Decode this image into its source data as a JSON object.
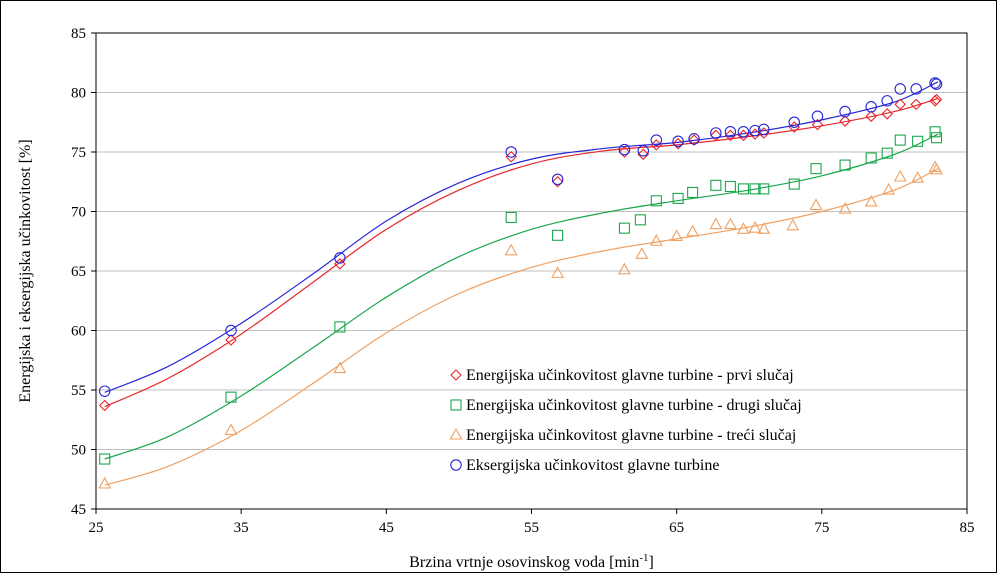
{
  "chart_data": {
    "type": "scatter",
    "xlabel": "Brzina vrtnje osovinskog voda [min",
    "xlabel_sup": "-1",
    "xlabel_end": "]",
    "ylabel": "Energijska i eksergijska učinkovitost [%]",
    "xlim": [
      25,
      85
    ],
    "ylim": [
      45,
      85
    ],
    "xticks": [
      25,
      35,
      45,
      55,
      65,
      75,
      85
    ],
    "yticks": [
      45,
      50,
      55,
      60,
      65,
      70,
      75,
      80,
      85
    ],
    "legend_position": "lower-right",
    "series": [
      {
        "name": "Energijska učinkovitost glavne turbine - prvi slučaj",
        "marker": "diamond",
        "color": "#e8262b",
        "points": [
          [
            25.6,
            53.7
          ],
          [
            34.3,
            59.2
          ],
          [
            41.8,
            65.6
          ],
          [
            53.6,
            74.6
          ],
          [
            56.8,
            72.5
          ],
          [
            61.4,
            75
          ],
          [
            62.7,
            74.8
          ],
          [
            63.6,
            75.6
          ],
          [
            65.1,
            75.7
          ],
          [
            66.2,
            76
          ],
          [
            67.7,
            76.4
          ],
          [
            68.7,
            76.4
          ],
          [
            69.6,
            76.4
          ],
          [
            70.4,
            76.5
          ],
          [
            71,
            76.6
          ],
          [
            73.1,
            77.1
          ],
          [
            74.7,
            77.3
          ],
          [
            76.6,
            77.6
          ],
          [
            78.4,
            78
          ],
          [
            79.5,
            78.2
          ],
          [
            80.4,
            79
          ],
          [
            81.5,
            79
          ],
          [
            82.8,
            79.3
          ],
          [
            82.9,
            79.4
          ]
        ],
        "fit": [
          [
            25.6,
            53.6
          ],
          [
            30,
            56
          ],
          [
            35,
            59.7
          ],
          [
            40,
            64.1
          ],
          [
            45,
            68.5
          ],
          [
            50,
            71.8
          ],
          [
            55,
            74
          ],
          [
            60,
            75.1
          ],
          [
            65,
            75.6
          ],
          [
            70,
            76.3
          ],
          [
            75,
            77.2
          ],
          [
            80,
            78.4
          ],
          [
            83,
            79.5
          ]
        ]
      },
      {
        "name": "Energijska učinkovitost glavne turbine - drugi slučaj",
        "marker": "square",
        "color": "#1aa64b",
        "points": [
          [
            25.6,
            49.2
          ],
          [
            34.3,
            54.4
          ],
          [
            41.8,
            60.3
          ],
          [
            53.6,
            69.5
          ],
          [
            56.8,
            68
          ],
          [
            61.4,
            68.6
          ],
          [
            62.5,
            69.3
          ],
          [
            63.6,
            70.9
          ],
          [
            65.1,
            71.1
          ],
          [
            66.1,
            71.6
          ],
          [
            67.7,
            72.2
          ],
          [
            68.7,
            72.1
          ],
          [
            69.6,
            71.9
          ],
          [
            70.4,
            71.9
          ],
          [
            71,
            71.9
          ],
          [
            73.1,
            72.3
          ],
          [
            74.6,
            73.6
          ],
          [
            76.6,
            73.9
          ],
          [
            78.4,
            74.5
          ],
          [
            79.5,
            74.9
          ],
          [
            80.4,
            76
          ],
          [
            81.6,
            75.9
          ],
          [
            82.8,
            76.7
          ],
          [
            82.9,
            76.2
          ]
        ],
        "fit": [
          [
            25.6,
            49.2
          ],
          [
            30,
            51.1
          ],
          [
            35,
            54.5
          ],
          [
            40,
            58.6
          ],
          [
            45,
            62.8
          ],
          [
            50,
            66.2
          ],
          [
            55,
            68.5
          ],
          [
            60,
            69.9
          ],
          [
            65,
            70.9
          ],
          [
            70,
            71.8
          ],
          [
            75,
            73
          ],
          [
            80,
            74.8
          ],
          [
            83,
            76.5
          ]
        ]
      },
      {
        "name": "Energijska učinkovitost glavne turbine - treći slučaj",
        "marker": "triangle",
        "color": "#f0a060",
        "points": [
          [
            25.6,
            47.1
          ],
          [
            34.3,
            51.6
          ],
          [
            41.8,
            56.8
          ],
          [
            53.6,
            66.7
          ],
          [
            56.8,
            64.8
          ],
          [
            61.4,
            65.1
          ],
          [
            62.6,
            66.4
          ],
          [
            63.6,
            67.5
          ],
          [
            65,
            67.9
          ],
          [
            66.1,
            68.3
          ],
          [
            67.7,
            68.9
          ],
          [
            68.7,
            68.9
          ],
          [
            69.6,
            68.5
          ],
          [
            70.4,
            68.6
          ],
          [
            71,
            68.5
          ],
          [
            73,
            68.8
          ],
          [
            74.6,
            70.5
          ],
          [
            76.6,
            70.2
          ],
          [
            78.4,
            70.8
          ],
          [
            79.6,
            71.8
          ],
          [
            80.4,
            72.9
          ],
          [
            81.6,
            72.8
          ],
          [
            82.9,
            73.5
          ],
          [
            82.8,
            73.7
          ]
        ],
        "fit": [
          [
            25.6,
            47
          ],
          [
            30,
            48.6
          ],
          [
            35,
            51.6
          ],
          [
            40,
            55.6
          ],
          [
            45,
            59.8
          ],
          [
            50,
            63.1
          ],
          [
            55,
            65.3
          ],
          [
            60,
            66.7
          ],
          [
            65,
            67.7
          ],
          [
            70,
            68.7
          ],
          [
            75,
            70
          ],
          [
            80,
            71.8
          ],
          [
            83,
            73.6
          ]
        ]
      },
      {
        "name": "Eksergijska učinkovitost glavne turbine",
        "marker": "circle",
        "color": "#2626d9",
        "points": [
          [
            25.6,
            54.9
          ],
          [
            34.3,
            60
          ],
          [
            41.8,
            66.1
          ],
          [
            53.6,
            75
          ],
          [
            56.8,
            72.7
          ],
          [
            61.4,
            75.2
          ],
          [
            62.7,
            75.1
          ],
          [
            63.6,
            76
          ],
          [
            65.1,
            75.9
          ],
          [
            66.2,
            76.1
          ],
          [
            67.7,
            76.6
          ],
          [
            68.7,
            76.7
          ],
          [
            69.6,
            76.7
          ],
          [
            70.4,
            76.8
          ],
          [
            71,
            76.9
          ],
          [
            73.1,
            77.5
          ],
          [
            74.7,
            78
          ],
          [
            76.6,
            78.4
          ],
          [
            78.4,
            78.8
          ],
          [
            79.5,
            79.3
          ],
          [
            80.4,
            80.3
          ],
          [
            81.5,
            80.3
          ],
          [
            82.8,
            80.8
          ],
          [
            82.9,
            80.7
          ]
        ],
        "fit": [
          [
            25.6,
            54.8
          ],
          [
            30,
            57
          ],
          [
            35,
            60.6
          ],
          [
            40,
            64.8
          ],
          [
            45,
            69.2
          ],
          [
            50,
            72.4
          ],
          [
            55,
            74.4
          ],
          [
            60,
            75.3
          ],
          [
            65,
            75.8
          ],
          [
            70,
            76.6
          ],
          [
            75,
            77.7
          ],
          [
            80,
            79.2
          ],
          [
            83,
            80.9
          ]
        ]
      }
    ]
  }
}
